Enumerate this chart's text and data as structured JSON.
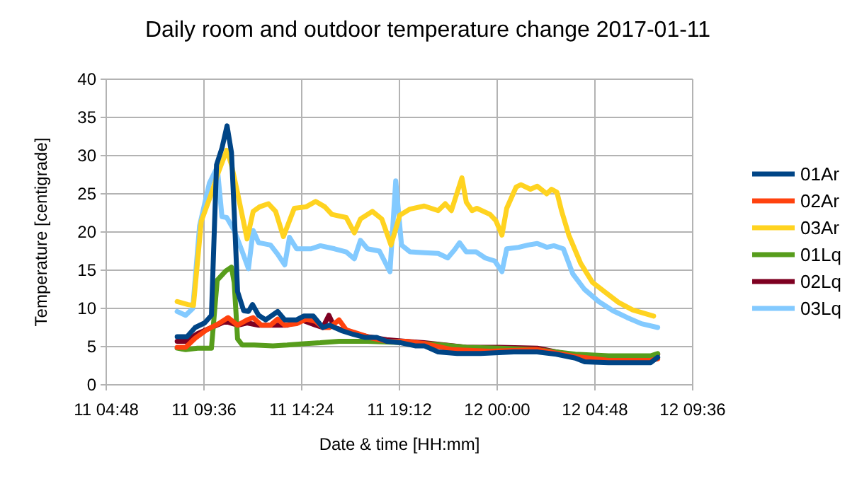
{
  "chart_data": {
    "type": "line",
    "title": "Daily room and outdoor temperature change 2017-01-11",
    "xlabel": "Date & time [HH:mm]",
    "ylabel": "Temperature [centigrade]",
    "xlim": [
      "2017-01-11T04:48",
      "2017-01-12T09:36"
    ],
    "xticks": [
      {
        "value": "2017-01-11T04:48",
        "label": "11 04:48"
      },
      {
        "value": "2017-01-11T09:36",
        "label": "11 09:36"
      },
      {
        "value": "2017-01-11T14:24",
        "label": "11 14:24"
      },
      {
        "value": "2017-01-11T19:12",
        "label": "11 19:12"
      },
      {
        "value": "2017-01-12T00:00",
        "label": "12 00:00"
      },
      {
        "value": "2017-01-12T04:48",
        "label": "12 04:48"
      },
      {
        "value": "2017-01-12T09:36",
        "label": "12 09:36"
      }
    ],
    "ylim": [
      0,
      40
    ],
    "yticks": [
      0,
      5,
      10,
      15,
      20,
      25,
      30,
      35,
      40
    ],
    "grid": true,
    "legend": "right",
    "line_style": "solid",
    "marker": "none",
    "series": [
      {
        "name": "01Ar",
        "color": "#004586",
        "x": [
          "2017-01-11T08:17",
          "2017-01-11T08:46",
          "2017-01-11T09:10",
          "2017-01-11T09:38",
          "2017-01-11T09:58",
          "2017-01-11T10:13",
          "2017-01-11T10:29",
          "2017-01-11T10:44",
          "2017-01-11T10:57",
          "2017-01-11T11:05",
          "2017-01-11T11:15",
          "2017-01-11T11:33",
          "2017-01-11T11:47",
          "2017-01-11T11:59",
          "2017-01-11T12:17",
          "2017-01-11T12:38",
          "2017-01-11T13:13",
          "2017-01-11T13:34",
          "2017-01-11T14:09",
          "2017-01-11T14:30",
          "2017-01-11T14:58",
          "2017-01-11T15:26",
          "2017-01-11T15:46",
          "2017-01-11T16:21",
          "2017-01-11T16:56",
          "2017-01-11T17:31",
          "2017-01-11T18:05",
          "2017-01-11T18:34",
          "2017-01-11T19:16",
          "2017-01-11T19:58",
          "2017-01-11T20:25",
          "2017-01-11T21:06",
          "2017-01-11T22:02",
          "2017-01-11T23:11",
          "2017-01-12T00:49",
          "2017-01-12T01:58",
          "2017-01-12T02:54",
          "2017-01-12T03:50",
          "2017-01-12T04:18",
          "2017-01-12T05:28",
          "2017-01-12T06:37",
          "2017-01-12T07:32",
          "2017-01-12T07:53"
        ],
        "values": [
          6.3,
          6.3,
          7.5,
          8.1,
          9.1,
          28.8,
          31,
          33.9,
          30.4,
          22.7,
          12.2,
          9.7,
          9.6,
          10.5,
          9.1,
          8.5,
          9.6,
          8.5,
          8.5,
          9,
          9,
          7.5,
          7.8,
          7.1,
          6.6,
          6.2,
          6.2,
          5.7,
          5.5,
          5.1,
          5.1,
          4.3,
          4.1,
          4.1,
          4.3,
          4.3,
          4,
          3.5,
          3,
          2.9,
          2.9,
          2.9,
          3.6
        ]
      },
      {
        "name": "02Ar",
        "color": "#ff420e",
        "x": [
          "2017-01-11T08:17",
          "2017-01-11T08:42",
          "2017-01-11T09:10",
          "2017-01-11T09:44",
          "2017-01-11T10:19",
          "2017-01-11T10:47",
          "2017-01-11T11:15",
          "2017-01-11T11:43",
          "2017-01-11T12:01",
          "2017-01-11T12:25",
          "2017-01-11T12:52",
          "2017-01-11T13:13",
          "2017-01-11T13:34",
          "2017-01-11T14:09",
          "2017-01-11T14:37",
          "2017-01-11T15:05",
          "2017-01-11T15:26",
          "2017-01-11T15:46",
          "2017-01-11T16:14",
          "2017-01-11T16:35",
          "2017-01-11T17:10",
          "2017-01-11T17:52",
          "2017-01-11T18:34",
          "2017-01-11T19:29",
          "2017-01-11T20:25",
          "2017-01-11T21:48",
          "2017-01-11T23:39",
          "2017-01-12T01:58",
          "2017-01-12T03:50",
          "2017-01-12T05:28",
          "2017-01-12T07:32",
          "2017-01-12T07:53"
        ],
        "values": [
          4.9,
          4.9,
          6.1,
          7.2,
          8,
          8.8,
          7.8,
          8.5,
          8.8,
          7.8,
          7.8,
          8.6,
          7.8,
          8,
          8.6,
          8.3,
          7.5,
          7.5,
          8.5,
          7.2,
          6.7,
          6.1,
          5.7,
          5.7,
          5.4,
          4.6,
          4.4,
          4.6,
          3.7,
          3.2,
          3.2,
          3.4
        ]
      },
      {
        "name": "03Ar",
        "color": "#ffd320",
        "x": [
          "2017-01-11T08:17",
          "2017-01-11T08:49",
          "2017-01-11T09:05",
          "2017-01-11T09:28",
          "2017-01-11T09:56",
          "2017-01-11T10:19",
          "2017-01-11T10:43",
          "2017-01-11T10:57",
          "2017-01-11T11:15",
          "2017-01-11T11:43",
          "2017-01-11T12:01",
          "2017-01-11T12:20",
          "2017-01-11T12:46",
          "2017-01-11T13:07",
          "2017-01-11T13:30",
          "2017-01-11T14:02",
          "2017-01-11T14:37",
          "2017-01-11T15:05",
          "2017-01-11T15:32",
          "2017-01-11T15:53",
          "2017-01-11T16:35",
          "2017-01-11T16:59",
          "2017-01-11T17:17",
          "2017-01-11T17:52",
          "2017-01-11T18:20",
          "2017-01-11T18:47",
          "2017-01-11T19:13",
          "2017-01-11T19:43",
          "2017-01-11T20:25",
          "2017-01-11T21:06",
          "2017-01-11T21:27",
          "2017-01-11T21:45",
          "2017-01-11T22:16",
          "2017-01-11T22:29",
          "2017-01-11T22:46",
          "2017-01-11T23:00",
          "2017-01-11T23:39",
          "2017-01-11T23:56",
          "2017-01-12T00:14",
          "2017-01-12T00:28",
          "2017-01-12T00:56",
          "2017-01-12T01:10",
          "2017-01-12T01:38",
          "2017-01-12T01:58",
          "2017-01-12T02:26",
          "2017-01-12T02:40",
          "2017-01-12T02:56",
          "2017-01-12T03:10",
          "2017-01-12T03:31",
          "2017-01-12T04:06",
          "2017-01-12T04:41",
          "2017-01-12T05:16",
          "2017-01-12T05:57",
          "2017-01-12T06:39",
          "2017-01-12T07:41"
        ],
        "values": [
          10.9,
          10.5,
          10.4,
          21.4,
          24.8,
          27.9,
          30.7,
          28.8,
          25.1,
          19.1,
          22.7,
          23.3,
          23.7,
          22.7,
          19.4,
          23.1,
          23.3,
          24,
          23.3,
          22.3,
          21.9,
          19.9,
          21.7,
          22.7,
          21.7,
          18.3,
          22.2,
          23,
          23.4,
          22.8,
          23.7,
          22.8,
          27.1,
          23.9,
          22.8,
          23.1,
          22.3,
          21.5,
          19.6,
          23.1,
          25.9,
          26.2,
          25.6,
          26,
          25,
          25.6,
          25.2,
          22.7,
          19.6,
          15.9,
          13.4,
          12.2,
          10.8,
          9.8,
          9
        ]
      },
      {
        "name": "01Lq",
        "color": "#579d1c",
        "x": [
          "2017-01-11T08:17",
          "2017-01-11T08:42",
          "2017-01-11T09:17",
          "2017-01-11T09:58",
          "2017-01-11T10:15",
          "2017-01-11T10:40",
          "2017-01-11T10:57",
          "2017-01-11T11:05",
          "2017-01-11T11:15",
          "2017-01-11T11:29",
          "2017-01-11T12:04",
          "2017-01-11T12:59",
          "2017-01-11T13:41",
          "2017-01-11T14:37",
          "2017-01-11T15:19",
          "2017-01-11T16:14",
          "2017-01-11T16:56",
          "2017-01-11T17:38",
          "2017-01-11T18:34",
          "2017-01-11T19:29",
          "2017-01-11T20:25",
          "2017-01-11T21:20",
          "2017-01-11T22:29",
          "2017-01-12T00:07",
          "2017-01-12T01:58",
          "2017-01-12T03:50",
          "2017-01-12T05:28",
          "2017-01-12T07:32",
          "2017-01-12T07:53"
        ],
        "values": [
          4.8,
          4.6,
          4.8,
          4.8,
          13.7,
          14.9,
          15.4,
          13.4,
          6,
          5.2,
          5.2,
          5.1,
          5.2,
          5.4,
          5.5,
          5.7,
          5.7,
          5.7,
          5.6,
          5.5,
          5.4,
          5.2,
          4.9,
          4.8,
          4.6,
          4,
          3.8,
          3.8,
          4.1
        ]
      },
      {
        "name": "02Lq",
        "color": "#7e0021",
        "x": [
          "2017-01-11T08:17",
          "2017-01-11T08:42",
          "2017-01-11T09:17",
          "2017-01-11T09:58",
          "2017-01-11T10:40",
          "2017-01-11T11:15",
          "2017-01-11T11:43",
          "2017-01-11T12:17",
          "2017-01-11T12:59",
          "2017-01-11T13:41",
          "2017-01-11T14:23",
          "2017-01-11T15:05",
          "2017-01-11T15:26",
          "2017-01-11T15:44",
          "2017-01-11T16:01",
          "2017-01-11T16:43",
          "2017-01-11T17:38",
          "2017-01-11T18:34",
          "2017-01-11T19:29",
          "2017-01-11T20:25",
          "2017-01-11T22:29",
          "2017-01-12T00:07",
          "2017-01-12T01:58",
          "2017-01-12T03:50",
          "2017-01-12T05:41",
          "2017-01-12T07:32",
          "2017-01-12T07:53"
        ],
        "values": [
          5.7,
          5.7,
          6.7,
          7.5,
          8.3,
          7.8,
          8.1,
          7.8,
          7.8,
          7.8,
          8.5,
          7.8,
          7.5,
          9.1,
          7.5,
          6.9,
          6.3,
          5.9,
          5.7,
          5.5,
          4.9,
          4.9,
          4.8,
          3.8,
          3.5,
          3.5,
          4
        ]
      },
      {
        "name": "03Lq",
        "color": "#83caff",
        "x": [
          "2017-01-11T08:17",
          "2017-01-11T08:42",
          "2017-01-11T09:03",
          "2017-01-11T09:23",
          "2017-01-11T09:52",
          "2017-01-11T10:15",
          "2017-01-11T10:29",
          "2017-01-11T10:43",
          "2017-01-11T11:05",
          "2017-01-11T11:29",
          "2017-01-11T11:47",
          "2017-01-11T12:01",
          "2017-01-11T12:17",
          "2017-01-11T12:52",
          "2017-01-11T13:13",
          "2017-01-11T13:34",
          "2017-01-11T13:48",
          "2017-01-11T14:09",
          "2017-01-11T14:51",
          "2017-01-11T15:19",
          "2017-01-11T16:01",
          "2017-01-11T16:35",
          "2017-01-11T16:59",
          "2017-01-11T17:17",
          "2017-01-11T17:38",
          "2017-01-11T18:13",
          "2017-01-11T18:44",
          "2017-01-11T19:01",
          "2017-01-11T19:18",
          "2017-01-11T19:43",
          "2017-01-11T20:25",
          "2017-01-11T21:06",
          "2017-01-11T21:34",
          "2017-01-11T21:55",
          "2017-01-11T22:09",
          "2017-01-11T22:29",
          "2017-01-11T22:58",
          "2017-01-11T23:25",
          "2017-01-11T23:53",
          "2017-01-12T00:14",
          "2017-01-12T00:28",
          "2017-01-12T01:03",
          "2017-01-12T01:31",
          "2017-01-12T01:58",
          "2017-01-12T02:26",
          "2017-01-12T02:47",
          "2017-01-12T03:15",
          "2017-01-12T03:43",
          "2017-01-12T04:17",
          "2017-01-12T04:59",
          "2017-01-12T05:41",
          "2017-01-12T06:23",
          "2017-01-12T07:05",
          "2017-01-12T07:53"
        ],
        "values": [
          9.6,
          9.1,
          10,
          20.8,
          26.4,
          28.5,
          22,
          21.9,
          20.2,
          17.4,
          15.2,
          20.2,
          18.6,
          18.3,
          17.1,
          15.7,
          19.3,
          17.8,
          17.8,
          18.2,
          17.8,
          17.4,
          16.5,
          18.9,
          17.8,
          17.5,
          14.8,
          26.7,
          18.3,
          17.4,
          17.3,
          17.2,
          16.6,
          17.7,
          18.6,
          17.4,
          17.4,
          16.6,
          16.2,
          14.8,
          17.8,
          18,
          18.3,
          18.5,
          18,
          18.2,
          17.8,
          14.5,
          12.5,
          10.9,
          9.7,
          8.8,
          8,
          7.5
        ]
      }
    ]
  }
}
